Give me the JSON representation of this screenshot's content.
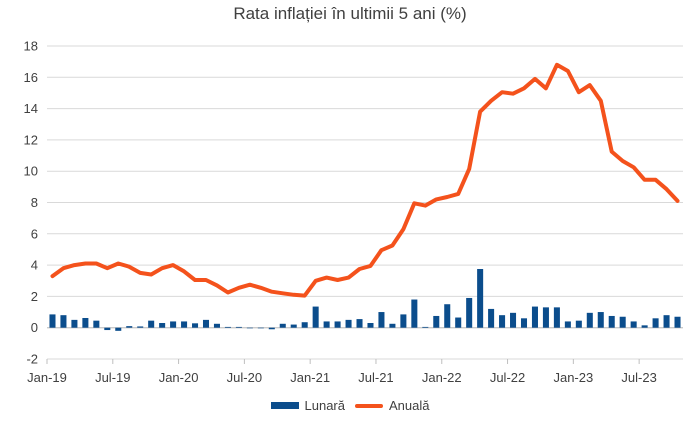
{
  "chart_data": {
    "type": "bar+line",
    "title": "Rata inflației în ultimii 5 ani (%)",
    "x": [
      "Jan-19",
      "Feb-19",
      "Mar-19",
      "Apr-19",
      "May-19",
      "Jun-19",
      "Jul-19",
      "Aug-19",
      "Sep-19",
      "Oct-19",
      "Nov-19",
      "Dec-19",
      "Jan-20",
      "Feb-20",
      "Mar-20",
      "Apr-20",
      "May-20",
      "Jun-20",
      "Jul-20",
      "Aug-20",
      "Sep-20",
      "Oct-20",
      "Nov-20",
      "Dec-20",
      "Jan-21",
      "Feb-21",
      "Mar-21",
      "Apr-21",
      "May-21",
      "Jun-21",
      "Jul-21",
      "Aug-21",
      "Sep-21",
      "Oct-21",
      "Nov-21",
      "Dec-21",
      "Jan-22",
      "Feb-22",
      "Mar-22",
      "Apr-22",
      "May-22",
      "Jun-22",
      "Jul-22",
      "Aug-22",
      "Sep-22",
      "Oct-22",
      "Nov-22",
      "Dec-22",
      "Jan-23",
      "Feb-23",
      "Mar-23",
      "Apr-23",
      "May-23",
      "Jun-23",
      "Jul-23",
      "Aug-23",
      "Sep-23",
      "Oct-23"
    ],
    "x_tick_labels": [
      "Jan-19",
      "Jul-19",
      "Jan-20",
      "Jul-20",
      "Jan-21",
      "Jul-21",
      "Jan-22",
      "Jul-22",
      "Jan-23",
      "Jul-23"
    ],
    "ylim": [
      -2,
      18
    ],
    "y_ticks": [
      -2,
      0,
      2,
      4,
      6,
      8,
      10,
      12,
      14,
      16,
      18
    ],
    "grid": "horizontal",
    "legend_position": "bottom",
    "series": [
      {
        "name": "Lunară",
        "type": "bar",
        "color": "#0b4d8c",
        "values": [
          0.85,
          0.8,
          0.5,
          0.62,
          0.45,
          -0.15,
          -0.2,
          0.1,
          0.08,
          0.45,
          0.3,
          0.4,
          0.4,
          0.28,
          0.5,
          0.25,
          0.05,
          0.05,
          0.0,
          0.0,
          -0.1,
          0.25,
          0.2,
          0.35,
          1.35,
          0.4,
          0.4,
          0.5,
          0.55,
          0.3,
          1.0,
          0.25,
          0.85,
          1.8,
          0.05,
          0.75,
          1.5,
          0.65,
          1.9,
          3.75,
          1.2,
          0.8,
          0.95,
          0.6,
          1.35,
          1.3,
          1.3,
          0.4,
          0.45,
          0.95,
          1.0,
          0.75,
          0.7,
          0.4,
          0.15,
          0.6,
          0.8,
          0.7
        ]
      },
      {
        "name": "Anuală",
        "type": "line",
        "color": "#f4521c",
        "values": [
          3.3,
          3.8,
          4.0,
          4.1,
          4.1,
          3.8,
          4.1,
          3.9,
          3.5,
          3.4,
          3.8,
          4.0,
          3.6,
          3.05,
          3.05,
          2.7,
          2.25,
          2.55,
          2.75,
          2.55,
          2.3,
          2.2,
          2.1,
          2.05,
          3.0,
          3.2,
          3.05,
          3.2,
          3.75,
          3.95,
          4.95,
          5.25,
          6.3,
          7.95,
          7.8,
          8.2,
          8.35,
          8.55,
          10.15,
          13.8,
          14.5,
          15.05,
          14.95,
          15.3,
          15.9,
          15.3,
          16.8,
          16.4,
          15.05,
          15.5,
          14.5,
          11.25,
          10.65,
          10.25,
          9.45,
          9.45,
          8.85,
          8.1
        ]
      }
    ]
  }
}
